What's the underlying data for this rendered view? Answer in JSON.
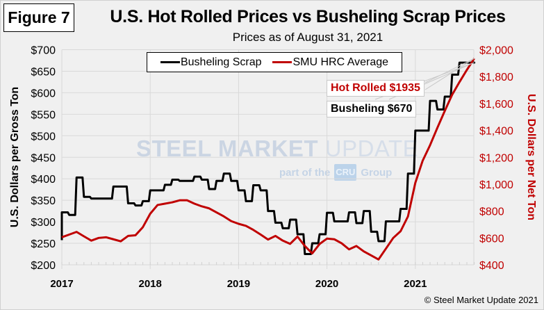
{
  "figure_label": "Figure 7",
  "title": "U.S. Hot Rolled Prices vs Busheling Scrap Prices",
  "subtitle": "Prices as of August 31, 2021",
  "copyright": "© Steel Market Update 2021",
  "watermark": {
    "line1_bold": "STEEL MARKET",
    "line1_light": "UPDATE",
    "line2_pre": "part of the",
    "line2_box": "CRU",
    "line2_post": "Group"
  },
  "legend": {
    "items": [
      {
        "label": "Busheling Scrap",
        "color": "#000000"
      },
      {
        "label": "SMU HRC Average",
        "color": "#c00000"
      }
    ]
  },
  "callouts": {
    "hot_rolled": "Hot Rolled $1935",
    "busheling": "Busheling $670"
  },
  "chart_data": {
    "type": "line",
    "title": "U.S. Hot Rolled Prices vs Busheling Scrap Prices",
    "subtitle": "Prices as of August 31, 2021",
    "xlabel": "",
    "ylabel": "U.S. Dollars per Gross Ton",
    "y2label": "U.S. Dollars per Net Ton",
    "x_ticks": [
      "2017",
      "2018",
      "2019",
      "2020",
      "2021"
    ],
    "xlim": [
      "2017-01",
      "2021-09"
    ],
    "ylim": [
      200,
      700
    ],
    "y_ticks": [
      "$200",
      "$250",
      "$300",
      "$350",
      "$400",
      "$450",
      "$500",
      "$550",
      "$600",
      "$650",
      "$700"
    ],
    "y2lim": [
      400,
      2000
    ],
    "y2_ticks": [
      "$400",
      "$600",
      "$800",
      "$1,000",
      "$1,200",
      "$1,400",
      "$1,600",
      "$1,800",
      "$2,000"
    ],
    "grid": true,
    "legend_position": "top-center",
    "x": [
      "2017-01",
      "2017-02",
      "2017-03",
      "2017-04",
      "2017-05",
      "2017-06",
      "2017-07",
      "2017-08",
      "2017-09",
      "2017-10",
      "2017-11",
      "2017-12",
      "2018-01",
      "2018-02",
      "2018-03",
      "2018-04",
      "2018-05",
      "2018-06",
      "2018-07",
      "2018-08",
      "2018-09",
      "2018-10",
      "2018-11",
      "2018-12",
      "2019-01",
      "2019-02",
      "2019-03",
      "2019-04",
      "2019-05",
      "2019-06",
      "2019-07",
      "2019-08",
      "2019-09",
      "2019-10",
      "2019-11",
      "2019-12",
      "2020-01",
      "2020-02",
      "2020-03",
      "2020-04",
      "2020-05",
      "2020-06",
      "2020-07",
      "2020-08",
      "2020-09",
      "2020-10",
      "2020-11",
      "2020-12",
      "2021-01",
      "2021-02",
      "2021-03",
      "2021-04",
      "2021-05",
      "2021-06",
      "2021-07",
      "2021-08",
      "2021-09"
    ],
    "series": [
      {
        "name": "Busheling Scrap",
        "axis": "left",
        "color": "#000000",
        "values": [
          322,
          316,
          403,
          358,
          354,
          354,
          354,
          382,
          382,
          343,
          338,
          348,
          373,
          373,
          386,
          398,
          395,
          395,
          405,
          398,
          376,
          395,
          412,
          395,
          373,
          348,
          385,
          373,
          325,
          298,
          285,
          305,
          271,
          225,
          250,
          271,
          321,
          301,
          301,
          322,
          297,
          325,
          277,
          255,
          301,
          301,
          330,
          412,
          512,
          512,
          581,
          561,
          591,
          642,
          670,
          670,
          670
        ]
      },
      {
        "name": "SMU HRC Average",
        "axis": "right",
        "color": "#c00000",
        "values": [
          605,
          625,
          645,
          612,
          580,
          600,
          605,
          590,
          575,
          615,
          620,
          680,
          780,
          845,
          855,
          865,
          880,
          880,
          855,
          835,
          820,
          790,
          760,
          725,
          705,
          690,
          660,
          625,
          588,
          615,
          580,
          556,
          610,
          540,
          485,
          555,
          595,
          590,
          560,
          515,
          540,
          500,
          470,
          440,
          520,
          600,
          650,
          760,
          1010,
          1175,
          1290,
          1420,
          1545,
          1665,
          1760,
          1850,
          1935
        ]
      }
    ]
  }
}
